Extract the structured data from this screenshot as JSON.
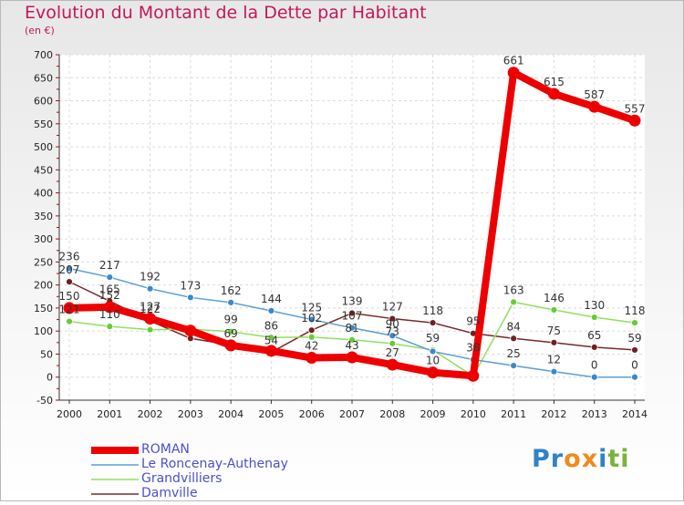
{
  "header": {
    "title": "Evolution du Montant de la Dette par Habitant",
    "unit": "(en €)"
  },
  "colors": {
    "ROMAN": "#ee0000",
    "Le Roncenay-Authenay": "#5a9fd4",
    "Grandvilliers": "#90e060",
    "Damville": "#7a2828",
    "marker_roncenay": "#3c88c8",
    "marker_grandvilliers": "#66cc33",
    "marker_damville": "#702020",
    "axis_red": "#cc0000",
    "title": "#c2185b",
    "legend_text": "#4a52c8"
  },
  "chart_data": {
    "type": "line",
    "x": [
      "2000",
      "2001",
      "2002",
      "2003",
      "2004",
      "2005",
      "2006",
      "2007",
      "2008",
      "2009",
      "2010",
      "2011",
      "2012",
      "2013",
      "2014"
    ],
    "ylim": [
      -50,
      700
    ],
    "yticks": [
      "-50",
      "0",
      "50",
      "100",
      "150",
      "200",
      "250",
      "300",
      "350",
      "400",
      "450",
      "500",
      "550",
      "600",
      "650",
      "700"
    ],
    "grid": true,
    "legend_position": "bottom-left",
    "series": [
      {
        "name": "ROMAN",
        "values": [
          150,
          152,
          127,
          101,
          69,
          57,
          42,
          43,
          27,
          10,
          3,
          661,
          615,
          587,
          557
        ],
        "labels": [
          "150",
          "152",
          "127",
          "",
          "69",
          "",
          "42",
          "43",
          "27",
          "10",
          "",
          "661",
          "615",
          "587",
          "557"
        ]
      },
      {
        "name": "Le Roncenay-Authenay",
        "values": [
          236,
          217,
          192,
          173,
          162,
          144,
          125,
          107,
          90,
          56,
          38,
          25,
          12,
          0,
          0
        ],
        "labels": [
          "236",
          "217",
          "192",
          "173",
          "162",
          "144",
          "125",
          "107",
          "90",
          "",
          "38",
          "25",
          "12",
          "0",
          "0"
        ]
      },
      {
        "name": "Grandvilliers",
        "values": [
          121,
          110,
          103,
          104,
          99,
          86,
          87,
          81,
          73,
          59,
          2,
          163,
          146,
          130,
          118
        ],
        "labels": [
          "121",
          "110",
          "",
          "",
          "99",
          "86",
          "",
          "81",
          "73",
          "59",
          "",
          "163",
          "146",
          "130",
          "118"
        ]
      },
      {
        "name": "Damville",
        "values": [
          207,
          165,
          122,
          84,
          70,
          54,
          102,
          139,
          127,
          118,
          95,
          84,
          75,
          65,
          59
        ],
        "labels": [
          "207",
          "165",
          "122",
          "",
          "",
          "54",
          "102",
          "139",
          "127",
          "118",
          "95",
          "84",
          "75",
          "65",
          "59"
        ]
      }
    ]
  },
  "legend": [
    {
      "label": "ROMAN"
    },
    {
      "label": "Le Roncenay-Authenay"
    },
    {
      "label": "Grandvilliers"
    },
    {
      "label": "Damville"
    }
  ],
  "logo": {
    "text": "Proxiti",
    "letters": [
      {
        "ch": "P",
        "color": "#2f83c8"
      },
      {
        "ch": "r",
        "color": "#2f83c8"
      },
      {
        "ch": "o",
        "color": "#f08a1e"
      },
      {
        "ch": "x",
        "color": "#f08a1e"
      },
      {
        "ch": "i",
        "color": "#2f83c8"
      },
      {
        "ch": "t",
        "color": "#7ab43a"
      },
      {
        "ch": "i",
        "color": "#7ab43a"
      }
    ]
  }
}
